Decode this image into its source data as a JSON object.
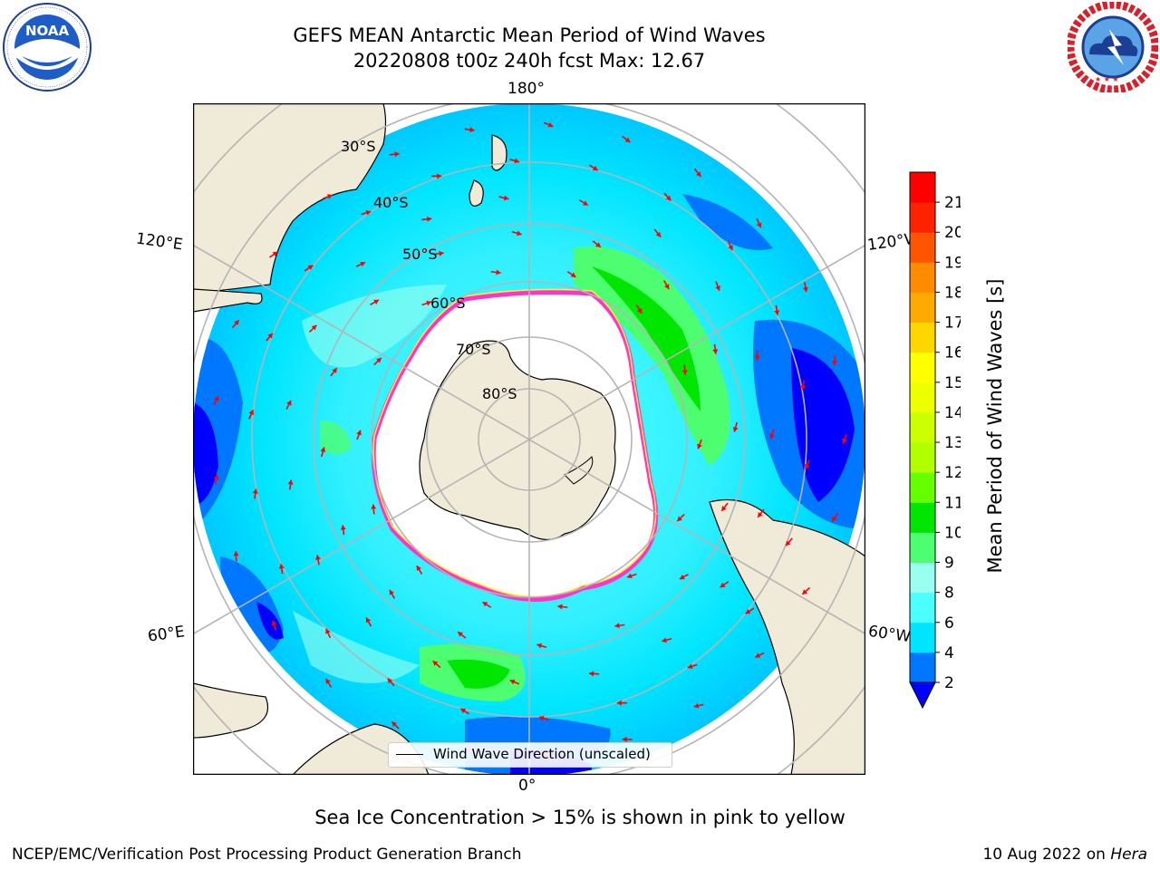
{
  "title": {
    "line1": "GEFS MEAN Antarctic Mean Period of Wind Waves",
    "line2": "20220808 t00z 240h fcst   Max: 12.67"
  },
  "logos": {
    "left": {
      "name": "noaa-logo",
      "text": "NOAA",
      "ring_text": "NATIONAL OCEANIC AND ATMOSPHERIC ADMINISTRATION · U.S. DEPARTMENT OF COMMERCE"
    },
    "right": {
      "name": "nws-logo",
      "ring_text": "NATIONAL WEATHER SERVICE"
    }
  },
  "map": {
    "projection": "south-polar-stereographic",
    "lon_labels": {
      "top": "180°",
      "bottom": "0°",
      "upper_left": "120°E",
      "upper_right": "120°W",
      "lower_left": "60°E",
      "lower_right": "60°W"
    },
    "lat_labels": [
      "30°S",
      "40°S",
      "50°S",
      "60°S",
      "70°S",
      "80°S"
    ],
    "legend": "Wind Wave Direction (unscaled)",
    "colors": {
      "land": "#efebd8",
      "sea_ice": "#ffffff",
      "ice_edge_pink": "#ff33cc",
      "ice_edge_yellow": "#ffee33",
      "arrow": "#ff0000",
      "grid": "#b4b4b4"
    }
  },
  "colorbar": {
    "label": "Mean Period of Wind Waves [s]",
    "ticks": [
      "2",
      "4",
      "6",
      "8",
      "9",
      "10",
      "11",
      "12",
      "13",
      "14",
      "15",
      "16",
      "17",
      "18",
      "19",
      "20",
      "21"
    ],
    "extend": "min",
    "under_color": "#0000ff",
    "colors": [
      "#0077ff",
      "#00e5ff",
      "#4cffff",
      "#99ffee",
      "#4dff70",
      "#00e600",
      "#66ff00",
      "#b2ff00",
      "#ccff00",
      "#eeff00",
      "#ffff00",
      "#ffd700",
      "#ffaa00",
      "#ff8c00",
      "#ff5500",
      "#ff2200",
      "#ff0000"
    ]
  },
  "footnote": "Sea Ice Concentration > 15% is shown in pink to yellow",
  "credit": "NCEP/EMC/Verification Post Processing Product Generation Branch",
  "date": {
    "prefix": "10 Aug 2022 on ",
    "machine": "Hera"
  }
}
